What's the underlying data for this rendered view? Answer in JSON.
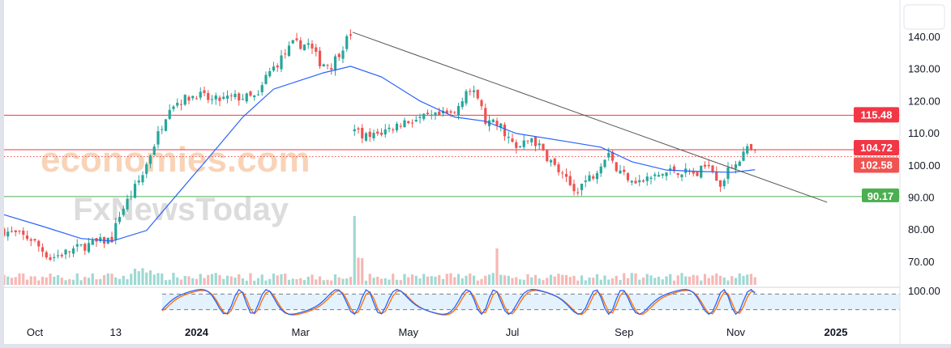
{
  "chart_data": {
    "type": "candlestick",
    "title": "",
    "watermark": [
      "economies.com",
      "FxNewsToday"
    ],
    "y_ticks": [
      140,
      130,
      120,
      110,
      100,
      90,
      80,
      70
    ],
    "y_tick_labels": [
      "140.00",
      "130.00",
      "120.00",
      "110.00",
      "100.00",
      "90.00",
      "80.00",
      "70.00"
    ],
    "x_ticks": [
      {
        "label": "Oct",
        "bar": 8
      },
      {
        "label": "13",
        "bar": 29
      },
      {
        "label": "2024",
        "bar": 50
      },
      {
        "label": "Mar",
        "bar": 77
      },
      {
        "label": "May",
        "bar": 105
      },
      {
        "label": "Jul",
        "bar": 132
      },
      {
        "label": "Sep",
        "bar": 161
      },
      {
        "label": "Nov",
        "bar": 190
      },
      {
        "label": "2025",
        "bar": 216
      }
    ],
    "price_path": [
      [
        0,
        79.5
      ],
      [
        7,
        77
      ],
      [
        12,
        71
      ],
      [
        20,
        74.5
      ],
      [
        28,
        77
      ],
      [
        30,
        84.6
      ],
      [
        36,
        97
      ],
      [
        38,
        103.5
      ],
      [
        43,
        118.6
      ],
      [
        50,
        122
      ],
      [
        54,
        120
      ],
      [
        60,
        121
      ],
      [
        66,
        121
      ],
      [
        68,
        127.4
      ],
      [
        75,
        137.5
      ],
      [
        79,
        137.5
      ],
      [
        82,
        132
      ],
      [
        85,
        131
      ],
      [
        90,
        141
      ],
      [
        91,
        110
      ],
      [
        95,
        108.5
      ],
      [
        104,
        113.5
      ],
      [
        112,
        115
      ],
      [
        117,
        116
      ],
      [
        120,
        123.6
      ],
      [
        123,
        121
      ],
      [
        125,
        113.5
      ],
      [
        129,
        112
      ],
      [
        133,
        104.7
      ],
      [
        137,
        108.5
      ],
      [
        142,
        101
      ],
      [
        148,
        92
      ],
      [
        153,
        97
      ],
      [
        157,
        104.7
      ],
      [
        159,
        98.4
      ],
      [
        165,
        94.7
      ],
      [
        174,
        98.4
      ],
      [
        180,
        97
      ],
      [
        183,
        101
      ],
      [
        186,
        94
      ],
      [
        189,
        99.7
      ],
      [
        193,
        104.7
      ],
      [
        195,
        103.5
      ]
    ],
    "ma_path": [
      [
        0,
        84.5
      ],
      [
        10,
        80.9
      ],
      [
        20,
        77.1
      ],
      [
        28,
        76.3
      ],
      [
        37,
        79.6
      ],
      [
        45,
        90.9
      ],
      [
        54,
        103.5
      ],
      [
        62,
        114.9
      ],
      [
        70,
        123.6
      ],
      [
        83,
        128.7
      ],
      [
        90,
        130.7
      ],
      [
        98,
        127.4
      ],
      [
        108,
        119.9
      ],
      [
        117,
        114.9
      ],
      [
        125,
        113.6
      ],
      [
        133,
        109.8
      ],
      [
        146,
        107.3
      ],
      [
        155,
        105.5
      ],
      [
        163,
        101
      ],
      [
        172,
        98.4
      ],
      [
        180,
        98
      ],
      [
        189,
        97.7
      ],
      [
        195,
        98.5
      ]
    ],
    "levels": [
      {
        "label": "115.48",
        "value": 115.48,
        "color": "#f23645",
        "style": "solid"
      },
      {
        "label": "104.72",
        "value": 104.72,
        "color": "#f23645",
        "style": "solid"
      },
      {
        "label": "102.58",
        "value": 102.58,
        "color": "#f05350",
        "style": "dotted"
      },
      {
        "label": "90.17",
        "value": 90.17,
        "color": "#4caf50",
        "style": "solid"
      }
    ],
    "trendline": {
      "from": [
        90.5,
        141.3
      ],
      "to": [
        213.7,
        88.4
      ]
    },
    "stochastic": {
      "scale_label": "100.00",
      "upper": 80,
      "lower": 20
    },
    "colors": {
      "up": "#26a69a",
      "down": "#ef5350",
      "ma": "#2962ff",
      "stoch_k": "#2962ff",
      "stoch_d": "#ff6d00"
    }
  }
}
